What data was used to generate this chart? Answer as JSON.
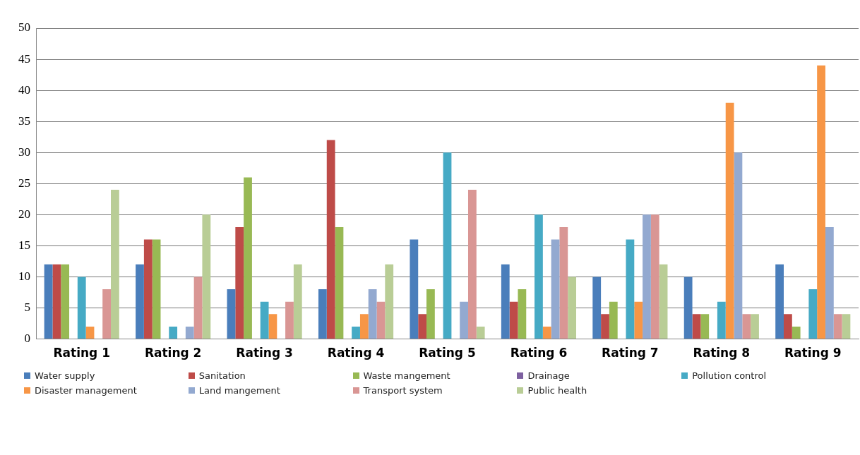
{
  "chart_data": {
    "type": "bar",
    "categories": [
      "Rating 1",
      "Rating 2",
      "Rating 3",
      "Rating 4",
      "Rating 5",
      "Rating 6",
      "Rating 7",
      "Rating 8",
      "Rating 9"
    ],
    "series": [
      {
        "name": "Water supply",
        "color": "#4a7ebb",
        "values": [
          12,
          12,
          8,
          8,
          16,
          12,
          10,
          10,
          12
        ]
      },
      {
        "name": "Sanitation",
        "color": "#be4b48",
        "values": [
          12,
          16,
          18,
          32,
          4,
          6,
          4,
          4,
          4
        ]
      },
      {
        "name": "Waste mangement",
        "color": "#98b954",
        "values": [
          12,
          16,
          26,
          18,
          8,
          8,
          6,
          4,
          2
        ]
      },
      {
        "name": "Drainage",
        "color": "#7d60a0",
        "values": [
          0,
          0,
          0,
          0,
          0,
          0,
          0,
          0,
          0
        ]
      },
      {
        "name": "Pollution control",
        "color": "#46aac5",
        "values": [
          10,
          2,
          6,
          2,
          30,
          20,
          16,
          6,
          8
        ]
      },
      {
        "name": "Disaster management",
        "color": "#f79646",
        "values": [
          2,
          0,
          4,
          4,
          0,
          2,
          6,
          38,
          44
        ]
      },
      {
        "name": "Land mangement",
        "color": "#93a9d0",
        "values": [
          0,
          2,
          0,
          8,
          6,
          16,
          20,
          30,
          18
        ]
      },
      {
        "name": "Transport system",
        "color": "#d99694",
        "values": [
          8,
          10,
          6,
          6,
          24,
          18,
          20,
          4,
          4
        ]
      },
      {
        "name": "Public health",
        "color": "#b9cd96",
        "values": [
          24,
          20,
          12,
          12,
          2,
          10,
          12,
          4,
          4
        ]
      }
    ],
    "ylim": [
      0,
      50
    ],
    "yticks": [
      0,
      5,
      10,
      15,
      20,
      25,
      30,
      35,
      40,
      45,
      50
    ],
    "grid": "y",
    "legend": "bottom"
  }
}
